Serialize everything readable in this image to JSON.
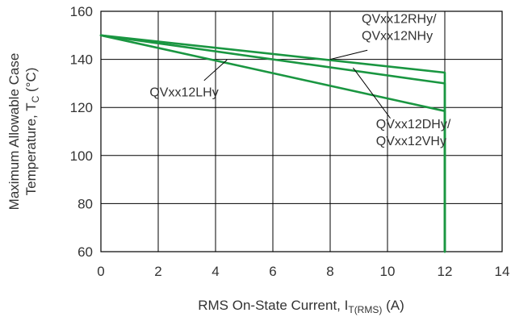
{
  "chart_data": {
    "type": "line",
    "xlabel": "RMS On-State Current, I",
    "xlabel_sub": "T(RMS)",
    "xlabel_suffix": " (A)",
    "ylabel_line1": "Maximum Allowable Case",
    "ylabel_line2_main": "Temperature, T",
    "ylabel_line2_sub": "C",
    "ylabel_line2_suffix": " (°C)",
    "xlim": [
      0,
      14
    ],
    "ylim": [
      60,
      160
    ],
    "x_ticks": [
      0,
      2,
      4,
      6,
      8,
      10,
      12,
      14
    ],
    "y_ticks": [
      60,
      80,
      100,
      120,
      140,
      160
    ],
    "grid": true,
    "line_color": "#1a9641",
    "series": [
      {
        "name": "QVxx12RHy/QVxx12NHy",
        "x": [
          0,
          12,
          12
        ],
        "y": [
          150,
          134.5,
          60
        ]
      },
      {
        "name": "QVxx12DHy/QVxx12VHy",
        "x": [
          0,
          12,
          12
        ],
        "y": [
          150,
          130,
          60
        ]
      },
      {
        "name": "QVxx12LHy",
        "x": [
          0,
          12,
          12
        ],
        "y": [
          150,
          118.5,
          60
        ]
      }
    ],
    "annotations": [
      {
        "lines": [
          "QVxx12RHy/",
          "QVxx12NHy"
        ],
        "text_at": [
          9.1,
          155.2
        ],
        "leader_from": [
          9.3,
          143.8
        ],
        "leader_to": [
          8.0,
          140.0
        ]
      },
      {
        "lines": [
          "QVxx12DHy/",
          "QVxx12VHy"
        ],
        "text_at": [
          9.6,
          111.4
        ],
        "leader_from": [
          10.1,
          115.5
        ],
        "leader_to": [
          8.8,
          136.5
        ]
      },
      {
        "lines": [
          "QVxx12LHy"
        ],
        "text_at": [
          1.7,
          124.6
        ],
        "leader_from": [
          3.6,
          131.2
        ],
        "leader_to": [
          4.4,
          139.8
        ]
      }
    ]
  }
}
